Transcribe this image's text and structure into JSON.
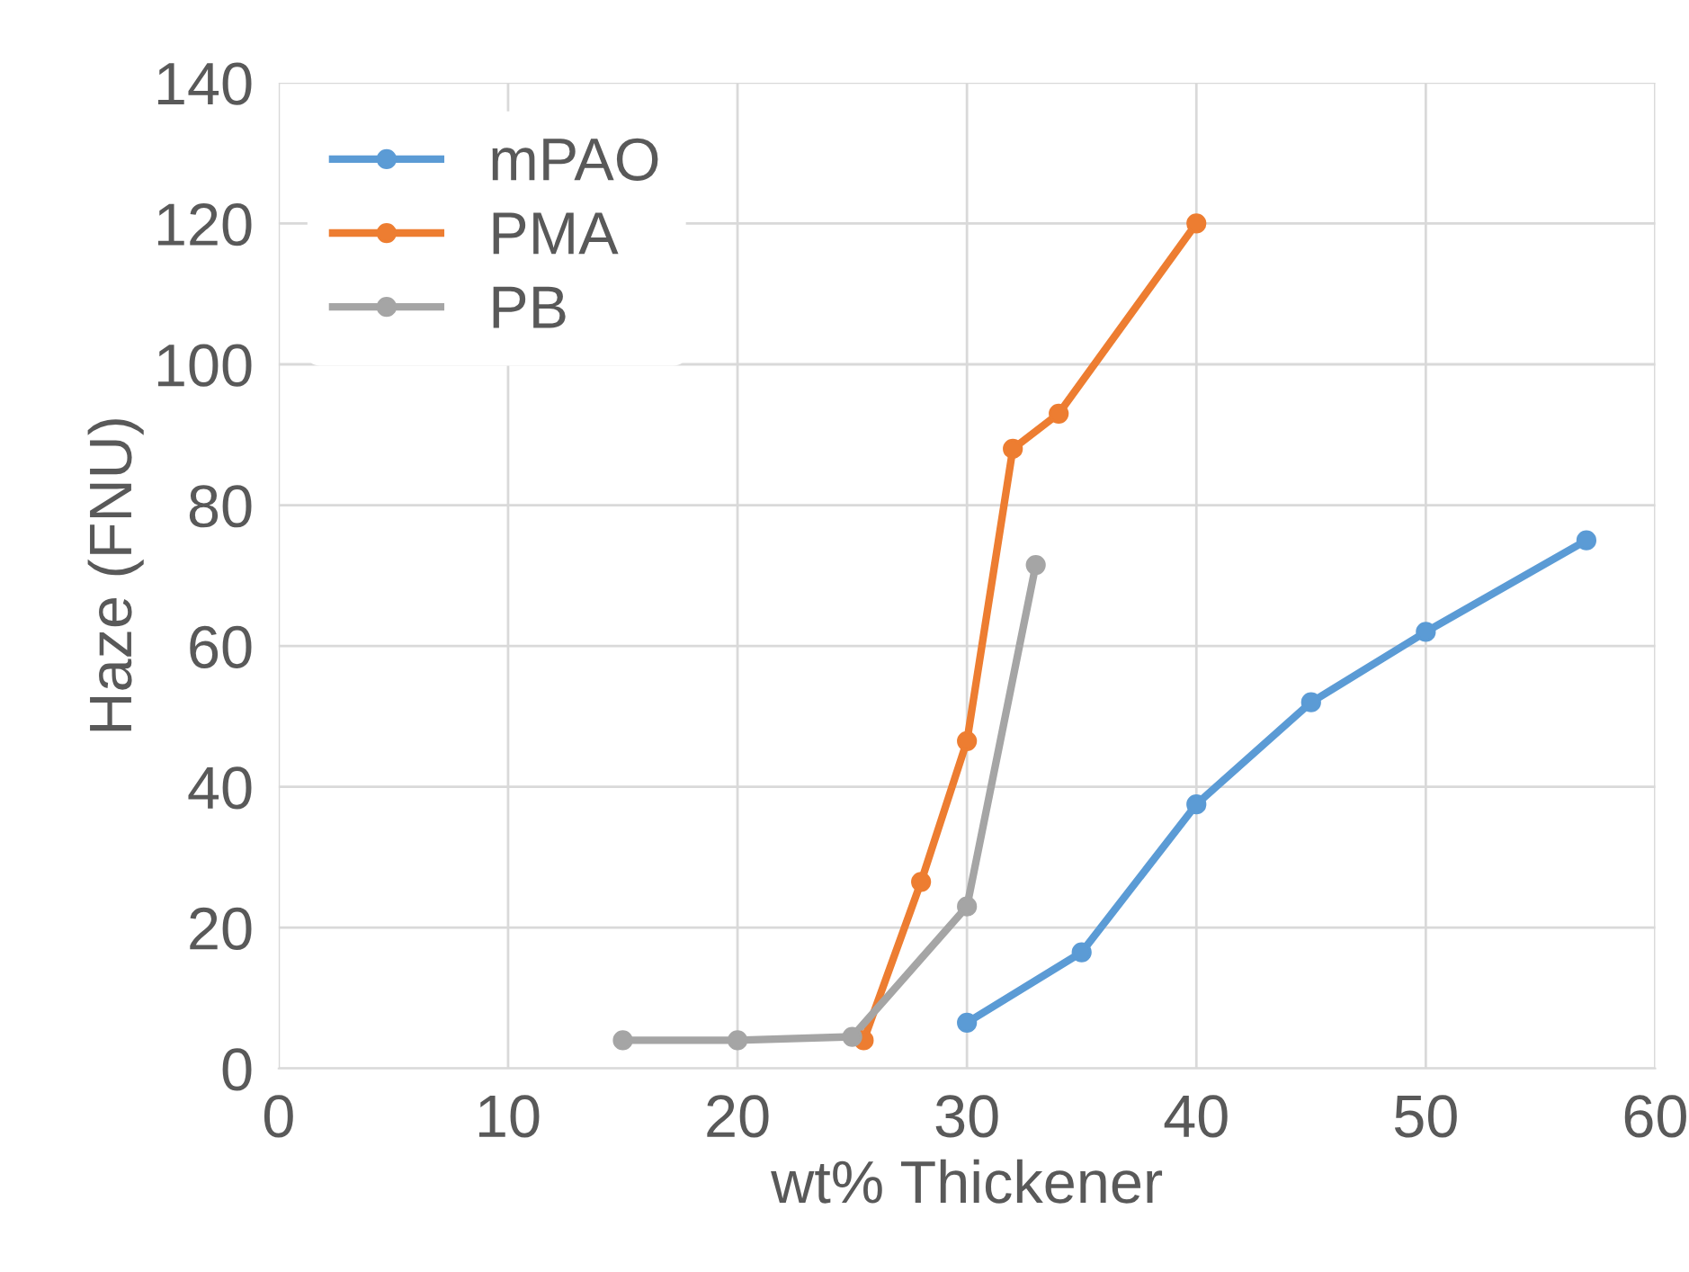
{
  "chart_data": {
    "type": "line",
    "xlabel": "wt% Thickener",
    "ylabel": "Haze (FNU)",
    "xlim": [
      0,
      60
    ],
    "xticks": [
      0,
      10,
      20,
      30,
      40,
      50,
      60
    ],
    "ylim": [
      0,
      140
    ],
    "yticks": [
      0,
      20,
      40,
      60,
      80,
      100,
      120,
      140
    ],
    "grid": true,
    "legend": "top left",
    "marker": "circle",
    "line_style": "solid",
    "series": [
      {
        "name": "mPAO",
        "color": "#5b9bd5",
        "x": [
          30,
          35,
          40,
          45,
          50,
          57
        ],
        "values": [
          6.5,
          16.5,
          37.5,
          52,
          62,
          75
        ]
      },
      {
        "name": "PMA",
        "color": "#ed7d31",
        "x": [
          25.5,
          28,
          30,
          32,
          34,
          40
        ],
        "values": [
          4,
          26.5,
          46.5,
          88,
          93,
          120
        ]
      },
      {
        "name": "PB",
        "color": "#a5a5a5",
        "x": [
          15,
          20,
          25,
          30,
          33
        ],
        "values": [
          4,
          4,
          4.5,
          23,
          71.5
        ]
      }
    ]
  }
}
